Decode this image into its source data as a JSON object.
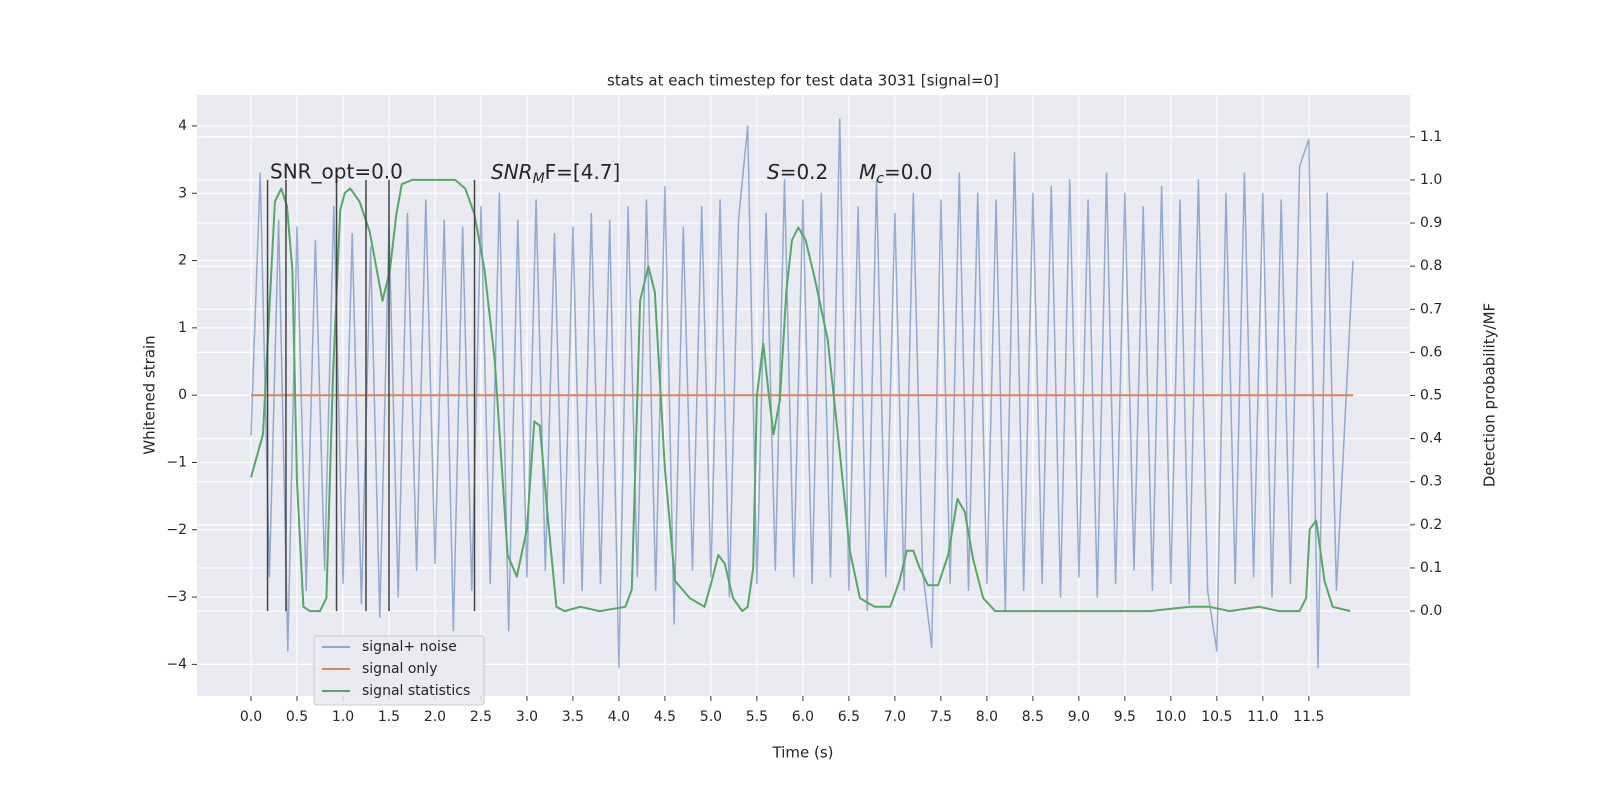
{
  "chart_data": {
    "type": "line",
    "title": "stats at each timestep for test data 3031 [signal=0]",
    "xlabel": "Time (s)",
    "ylabel": "Whitened strain",
    "y2label": "Detection probability/MF",
    "xlim": [
      -0.587,
      12.6
    ],
    "ylim": [
      -4.47,
      4.46
    ],
    "y2lim": [
      -0.197,
      1.197
    ],
    "grid": true,
    "legend": "lower left",
    "xticks": [
      {
        "value": 0,
        "label": "0.0"
      },
      0.5,
      {
        "value": 1,
        "label": "1.0"
      },
      1.5,
      {
        "value": 2,
        "label": "2.0"
      },
      2.5,
      {
        "value": 3,
        "label": "3.0"
      },
      3.5,
      {
        "value": 4,
        "label": "4.0"
      },
      4.5,
      {
        "value": 5,
        "label": "5.0"
      },
      5.5,
      {
        "value": 6,
        "label": "6.0"
      },
      6.5,
      {
        "value": 7,
        "label": "7.0"
      },
      7.5,
      {
        "value": 8,
        "label": "8.0"
      },
      8.5,
      {
        "value": 9,
        "label": "9.0"
      },
      9.5,
      {
        "value": 10,
        "label": "10.0"
      },
      10.5,
      {
        "value": 11,
        "label": "11.0"
      },
      11.5
    ],
    "yticks": [
      {
        "value": -4,
        "label": "−4"
      },
      {
        "value": -3,
        "label": "−3"
      },
      {
        "value": -2,
        "label": "−2"
      },
      {
        "value": -1,
        "label": "−1"
      },
      0,
      1,
      2,
      3,
      4
    ],
    "y2ticks": [
      {
        "value": 0,
        "label": "0.0"
      },
      0.1,
      0.2,
      0.3,
      0.4,
      0.5,
      0.6,
      0.7,
      0.8,
      0.9,
      {
        "value": 1,
        "label": "1.0"
      },
      1.1
    ],
    "annotations": [
      "SNR_opt=0.0",
      {
        "base": "SNR",
        "sub": "M",
        "rest": "F=[4.7]"
      },
      {
        "base": "S",
        "rest": "=0.2"
      },
      {
        "base": "M",
        "sub": "c",
        "rest": "=0.0"
      }
    ],
    "vlines": {
      "x": [
        0.18,
        0.38,
        0.93,
        1.25,
        1.5,
        2.43
      ],
      "ymin": 0,
      "ymax": 1,
      "color": "#444444"
    },
    "series": [
      {
        "name": "signal+ noise",
        "color": "#4c72b0",
        "axis": "y",
        "x": [
          0,
          0.1,
          0.2,
          0.3,
          0.4,
          0.5,
          0.6,
          0.7,
          0.8,
          0.9,
          1,
          1.1,
          1.2,
          1.3,
          1.4,
          1.5,
          1.6,
          1.7,
          1.8,
          1.9,
          2,
          2.1,
          2.2,
          2.3,
          2.4,
          2.5,
          2.6,
          2.7,
          2.8,
          2.9,
          3,
          3.1,
          3.2,
          3.3,
          3.4,
          3.5,
          3.6,
          3.7,
          3.8,
          3.9,
          4,
          4.1,
          4.2,
          4.3,
          4.4,
          4.5,
          4.6,
          4.7,
          4.8,
          4.9,
          5,
          5.1,
          5.2,
          5.3,
          5.4,
          5.5,
          5.6,
          5.7,
          5.8,
          5.9,
          6,
          6.1,
          6.2,
          6.3,
          6.4,
          6.5,
          6.6,
          6.7,
          6.8,
          6.9,
          7,
          7.1,
          7.2,
          7.3,
          7.4,
          7.5,
          7.6,
          7.7,
          7.8,
          7.9,
          8,
          8.1,
          8.2,
          8.3,
          8.4,
          8.5,
          8.6,
          8.7,
          8.8,
          8.9,
          9,
          9.1,
          9.2,
          9.3,
          9.4,
          9.5,
          9.6,
          9.7,
          9.8,
          9.9,
          10,
          10.1,
          10.2,
          10.3,
          10.4,
          10.5,
          10.6,
          10.7,
          10.8,
          10.9,
          11,
          11.1,
          11.2,
          11.3,
          11.4,
          11.5,
          11.6,
          11.7,
          11.8,
          11.98
        ],
        "values": [
          -0.6,
          3.3,
          -2.7,
          2.6,
          -3.8,
          2.5,
          -2.9,
          2.3,
          -2.6,
          2.8,
          -2.8,
          2.4,
          -3.1,
          2.2,
          -3.3,
          2.5,
          -3.0,
          2.7,
          -2.6,
          2.9,
          -2.5,
          2.6,
          -3.5,
          2.5,
          -2.9,
          2.8,
          -2.8,
          3.0,
          -3.5,
          2.6,
          -2.7,
          2.9,
          -2.6,
          2.4,
          -2.8,
          2.5,
          -2.9,
          2.7,
          -2.8,
          2.6,
          -4.05,
          2.8,
          -2.7,
          2.9,
          -2.9,
          3.1,
          -3.4,
          2.5,
          -2.6,
          2.8,
          -2.7,
          2.9,
          -3.0,
          2.6,
          4.0,
          -2.8,
          2.7,
          -2.6,
          3.2,
          -2.7,
          2.9,
          -2.8,
          3.0,
          -2.7,
          4.1,
          -2.9,
          2.8,
          -3.2,
          3.2,
          -2.7,
          2.7,
          -2.9,
          3.0,
          -2.6,
          -3.75,
          2.9,
          -2.8,
          3.3,
          -2.9,
          3.0,
          -2.8,
          2.9,
          -3.2,
          3.6,
          -2.9,
          3.0,
          -2.8,
          3.1,
          -3.0,
          3.2,
          -2.7,
          2.9,
          -3.0,
          3.3,
          -2.8,
          3.0,
          -2.6,
          2.8,
          -2.9,
          3.1,
          -2.8,
          2.9,
          -3.1,
          3.2,
          -2.9,
          -3.8,
          3.0,
          -2.8,
          3.3,
          -2.7,
          3.0,
          -3.0,
          2.9,
          -2.8,
          3.4,
          3.8,
          -4.05,
          3.0,
          -2.9,
          2.0
        ]
      },
      {
        "name": "signal only",
        "color": "#dd8452",
        "axis": "y",
        "x": [
          0,
          11.98
        ],
        "values": [
          0,
          0
        ]
      },
      {
        "name": "signal statistics",
        "color": "#55a868",
        "axis": "y2",
        "x": [
          0,
          0.13,
          0.26,
          0.33,
          0.39,
          0.45,
          0.5,
          0.57,
          0.64,
          0.75,
          0.82,
          0.89,
          0.97,
          1.02,
          1.08,
          1.18,
          1.29,
          1.43,
          1.51,
          1.58,
          1.64,
          1.75,
          2.22,
          2.33,
          2.43,
          2.54,
          2.65,
          2.79,
          2.89,
          3.0,
          3.08,
          3.14,
          3.23,
          3.32,
          3.41,
          3.58,
          3.79,
          4.07,
          4.14,
          4.23,
          4.32,
          4.39,
          4.5,
          4.61,
          4.77,
          4.93,
          5.01,
          5.08,
          5.15,
          5.24,
          5.34,
          5.4,
          5.46,
          5.5,
          5.57,
          5.63,
          5.68,
          5.75,
          5.82,
          5.88,
          5.95,
          6.03,
          6.13,
          6.27,
          6.4,
          6.51,
          6.62,
          6.78,
          6.95,
          7.05,
          7.13,
          7.2,
          7.27,
          7.36,
          7.47,
          7.58,
          7.68,
          7.76,
          7.85,
          7.96,
          8.09,
          9.23,
          9.77,
          10.21,
          10.42,
          10.64,
          10.96,
          11.18,
          11.4,
          11.47,
          11.51,
          11.58,
          11.67,
          11.76,
          11.95
        ],
        "values": [
          0.31,
          0.41,
          0.95,
          0.98,
          0.94,
          0.79,
          0.3,
          0.01,
          0,
          0,
          0.03,
          0.54,
          0.93,
          0.97,
          0.98,
          0.95,
          0.88,
          0.72,
          0.79,
          0.92,
          0.99,
          1,
          1,
          0.98,
          0.92,
          0.79,
          0.58,
          0.13,
          0.08,
          0.19,
          0.44,
          0.43,
          0.21,
          0.01,
          0,
          0.01,
          0,
          0.01,
          0.05,
          0.72,
          0.8,
          0.74,
          0.33,
          0.07,
          0.03,
          0.01,
          0.07,
          0.13,
          0.11,
          0.03,
          0,
          0.01,
          0.1,
          0.5,
          0.62,
          0.5,
          0.41,
          0.49,
          0.74,
          0.86,
          0.89,
          0.86,
          0.77,
          0.63,
          0.37,
          0.14,
          0.03,
          0.01,
          0.01,
          0.07,
          0.14,
          0.14,
          0.1,
          0.06,
          0.06,
          0.13,
          0.26,
          0.23,
          0.12,
          0.03,
          0,
          0,
          0,
          0.01,
          0.01,
          0,
          0.01,
          0,
          0,
          0.03,
          0.19,
          0.21,
          0.07,
          0.01,
          0
        ]
      }
    ]
  }
}
